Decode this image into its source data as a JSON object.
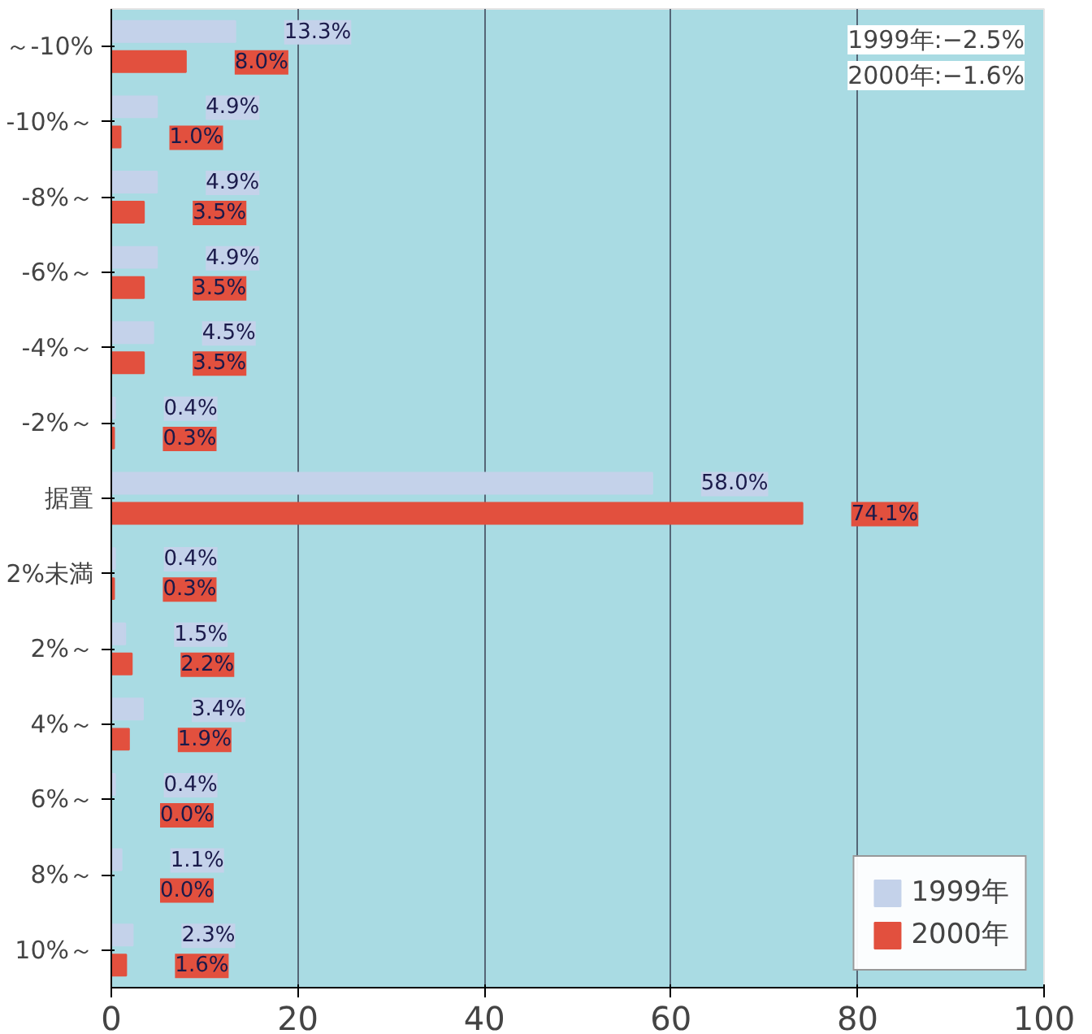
{
  "chart_data": {
    "type": "bar",
    "orientation": "horizontal",
    "categories": [
      "～-10%",
      "-10%～",
      "-8%～",
      "-6%～",
      "-4%～",
      "-2%～",
      "据置",
      "2%未満",
      "2%～",
      "4%～",
      "6%～",
      "8%～",
      "10%～"
    ],
    "series": [
      {
        "name": "1999年",
        "color": "#c4d2ea",
        "values": [
          13.3,
          4.9,
          4.9,
          4.9,
          4.5,
          0.4,
          58.0,
          0.4,
          1.5,
          3.4,
          0.4,
          1.1,
          2.3
        ],
        "value_labels": [
          "13.3%",
          "4.9%",
          "4.9%",
          "4.9%",
          "4.5%",
          "0.4%",
          "58.0%",
          "0.4%",
          "1.5%",
          "3.4%",
          "0.4%",
          "1.1%",
          "2.3%"
        ]
      },
      {
        "name": "2000年",
        "color": "#e2503e",
        "values": [
          8.0,
          1.0,
          3.5,
          3.5,
          3.5,
          0.3,
          74.1,
          0.3,
          2.2,
          1.9,
          0.0,
          0.0,
          1.6
        ],
        "value_labels": [
          "8.0%",
          "1.0%",
          "3.5%",
          "3.5%",
          "3.5%",
          "0.3%",
          "74.1%",
          "0.3%",
          "2.2%",
          "1.9%",
          "0.0%",
          "0.0%",
          "1.6%"
        ]
      }
    ],
    "xlim": [
      0,
      100
    ],
    "xticks": [
      0,
      20,
      40,
      60,
      80,
      100
    ],
    "grid": "x",
    "legend": "bottom right",
    "annotations": [
      "1999年:−2.5%",
      "2000年:−1.6%"
    ]
  }
}
